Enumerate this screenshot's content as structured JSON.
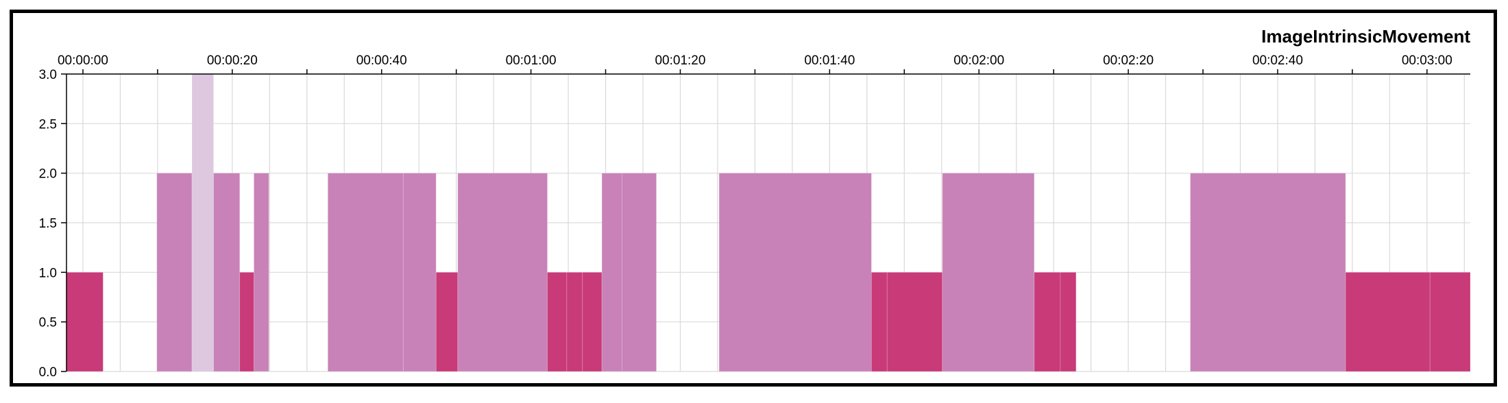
{
  "chart_data": {
    "type": "bar",
    "title": "ImageIntrinsicMovement",
    "xlabel": "",
    "ylabel": "",
    "x_unit": "seconds",
    "xlim": [
      -2.2,
      185.8
    ],
    "ylim": [
      0,
      3
    ],
    "x_ticks": [
      {
        "value": 0,
        "label": "00:00:00"
      },
      {
        "value": 20,
        "label": "00:00:20"
      },
      {
        "value": 40,
        "label": "00:00:40"
      },
      {
        "value": 60,
        "label": "00:01:00"
      },
      {
        "value": 80,
        "label": "00:01:20"
      },
      {
        "value": 100,
        "label": "00:01:40"
      },
      {
        "value": 120,
        "label": "00:02:00"
      },
      {
        "value": 140,
        "label": "00:02:20"
      },
      {
        "value": 160,
        "label": "00:02:40"
      },
      {
        "value": 180,
        "label": "00:03:00"
      }
    ],
    "y_ticks": [
      "0.0",
      "0.5",
      "1.0",
      "1.5",
      "2.0",
      "2.5",
      "3.0"
    ],
    "grid": true,
    "legend": "none",
    "colors": {
      "1": "#c83a78",
      "2": "#c882b8",
      "3": "#ddc8e0"
    },
    "segments": [
      {
        "start": -2.2,
        "end": 2.7,
        "value": 1
      },
      {
        "start": 9.9,
        "end": 14.6,
        "value": 2
      },
      {
        "start": 14.6,
        "end": 17.5,
        "value": 3
      },
      {
        "start": 17.5,
        "end": 21.0,
        "value": 2
      },
      {
        "start": 21.0,
        "end": 22.9,
        "value": 1
      },
      {
        "start": 22.9,
        "end": 24.9,
        "value": 2
      },
      {
        "start": 32.8,
        "end": 42.9,
        "value": 2
      },
      {
        "start": 42.9,
        "end": 47.3,
        "value": 2
      },
      {
        "start": 47.3,
        "end": 50.2,
        "value": 1
      },
      {
        "start": 50.2,
        "end": 62.2,
        "value": 2
      },
      {
        "start": 62.2,
        "end": 64.8,
        "value": 1
      },
      {
        "start": 64.8,
        "end": 66.9,
        "value": 1
      },
      {
        "start": 66.9,
        "end": 69.5,
        "value": 1
      },
      {
        "start": 69.5,
        "end": 72.2,
        "value": 2
      },
      {
        "start": 72.2,
        "end": 76.8,
        "value": 2
      },
      {
        "start": 85.2,
        "end": 105.6,
        "value": 2
      },
      {
        "start": 105.6,
        "end": 107.7,
        "value": 1
      },
      {
        "start": 107.7,
        "end": 115.1,
        "value": 1
      },
      {
        "start": 115.1,
        "end": 127.4,
        "value": 2
      },
      {
        "start": 127.4,
        "end": 130.9,
        "value": 1
      },
      {
        "start": 130.9,
        "end": 133.0,
        "value": 1
      },
      {
        "start": 148.3,
        "end": 169.1,
        "value": 2
      },
      {
        "start": 169.1,
        "end": 180.4,
        "value": 1
      },
      {
        "start": 180.4,
        "end": 185.8,
        "value": 1
      }
    ]
  }
}
